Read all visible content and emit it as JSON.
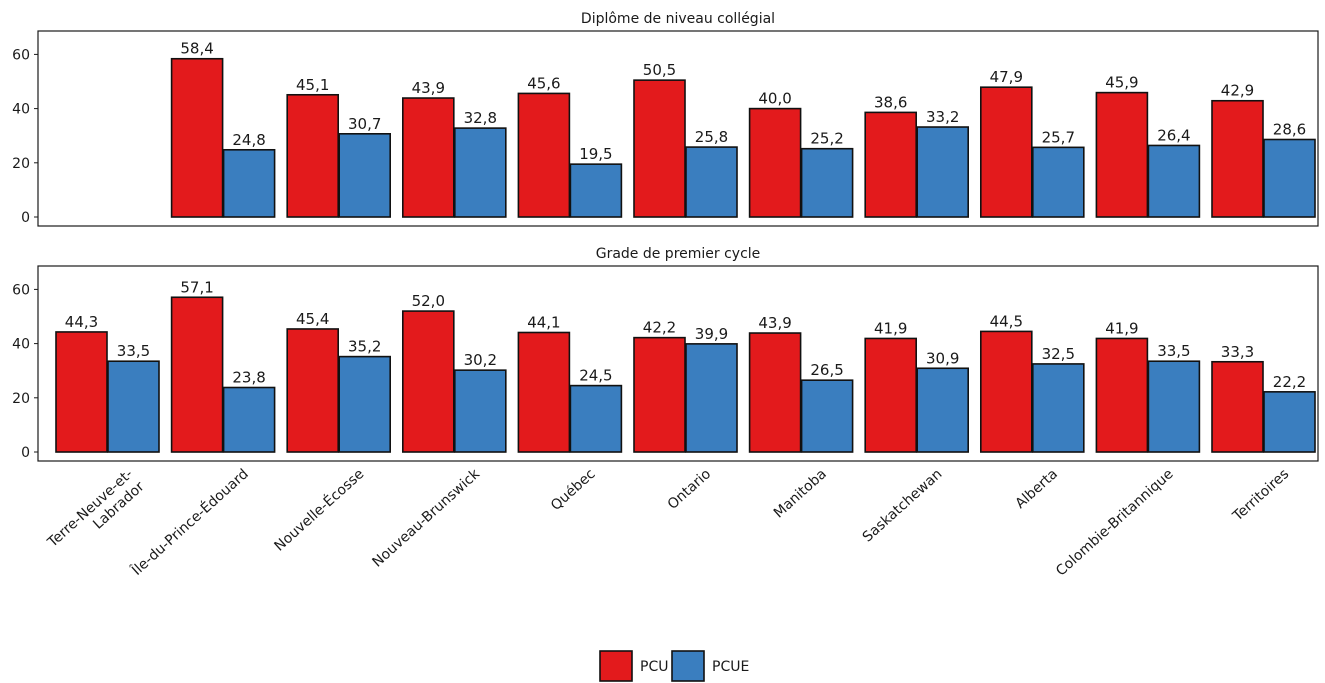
{
  "chart_data": {
    "type": "bar",
    "categories": [
      "Terre-Neuve-et-\nLabrador",
      "Île-du-Prince-Édouard",
      "Nouvelle-Écosse",
      "Nouveau-Brunswick",
      "Québec",
      "Ontario",
      "Manitoba",
      "Saskatchewan",
      "Alberta",
      "Colombie-Britannique",
      "Territoires"
    ],
    "ylim": [
      0,
      65
    ],
    "yticks": [
      0,
      20,
      40,
      60
    ],
    "grid": false,
    "legend_position": "bottom-center",
    "series_colors": {
      "PCU": "#e31a1c",
      "PCUE": "#3a7ebf"
    },
    "panels": [
      {
        "title": "Diplôme de niveau collégial",
        "series": [
          {
            "name": "PCU",
            "values": [
              null,
              58.4,
              45.1,
              43.9,
              45.6,
              50.5,
              40.0,
              38.6,
              47.9,
              45.9,
              42.9
            ],
            "labels": [
              null,
              "58,4",
              "45,1",
              "43,9",
              "45,6",
              "50,5",
              "40,0",
              "38,6",
              "47,9",
              "45,9",
              "42,9"
            ]
          },
          {
            "name": "PCUE",
            "values": [
              null,
              24.8,
              30.7,
              32.8,
              19.5,
              25.8,
              25.2,
              33.2,
              25.7,
              26.4,
              28.6
            ],
            "labels": [
              null,
              "24,8",
              "30,7",
              "32,8",
              "19,5",
              "25,8",
              "25,2",
              "33,2",
              "25,7",
              "26,4",
              "28,6"
            ]
          }
        ]
      },
      {
        "title": "Grade de premier cycle",
        "series": [
          {
            "name": "PCU",
            "values": [
              44.3,
              57.1,
              45.4,
              52.0,
              44.1,
              42.2,
              43.9,
              41.9,
              44.5,
              41.9,
              33.3
            ],
            "labels": [
              "44,3",
              "57,1",
              "45,4",
              "52,0",
              "44,1",
              "42,2",
              "43,9",
              "41,9",
              "44,5",
              "41,9",
              "33,3"
            ]
          },
          {
            "name": "PCUE",
            "values": [
              33.5,
              23.8,
              35.2,
              30.2,
              24.5,
              39.9,
              26.5,
              30.9,
              32.5,
              33.5,
              22.2
            ],
            "labels": [
              "33,5",
              "23,8",
              "35,2",
              "30,2",
              "24,5",
              "39,9",
              "26,5",
              "30,9",
              "32,5",
              "33,5",
              "22,2"
            ]
          }
        ]
      }
    ]
  }
}
